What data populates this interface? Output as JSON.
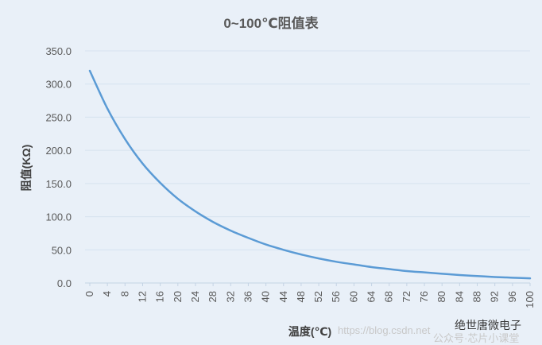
{
  "chart_data": {
    "type": "line",
    "title": "0~100℃阻值表",
    "xlabel": "温度(℃)",
    "ylabel": "阻值(KΩ)",
    "ylim": [
      0,
      350
    ],
    "xlim": [
      0,
      100
    ],
    "y_ticks": [
      "0.0",
      "50.0",
      "100.0",
      "150.0",
      "200.0",
      "250.0",
      "300.0",
      "350.0"
    ],
    "x_ticks": [
      "0",
      "4",
      "8",
      "12",
      "16",
      "20",
      "24",
      "28",
      "32",
      "36",
      "40",
      "44",
      "48",
      "52",
      "56",
      "60",
      "64",
      "68",
      "72",
      "76",
      "80",
      "84",
      "88",
      "92",
      "96",
      "100"
    ],
    "grid": true,
    "series": [
      {
        "color": "#5b9bd5",
        "x": [
          0,
          4,
          8,
          12,
          16,
          20,
          24,
          28,
          32,
          36,
          40,
          44,
          48,
          52,
          56,
          60,
          64,
          68,
          72,
          76,
          80,
          84,
          88,
          92,
          96,
          100
        ],
        "y": [
          320,
          263,
          217,
          180,
          151,
          127,
          108,
          92,
          79,
          68,
          58,
          50,
          43,
          37,
          32,
          28,
          24,
          21,
          18,
          16,
          14,
          12,
          10.5,
          9,
          8,
          7
        ]
      }
    ]
  },
  "watermark": {
    "url": "https://blog.csdn.net",
    "brand": "绝世唐微电子",
    "brand_line2": "公众号·芯片小课堂"
  },
  "colors": {
    "background": "#e9f0f8",
    "grid": "#d6e2ef",
    "line": "#5b9bd5"
  }
}
